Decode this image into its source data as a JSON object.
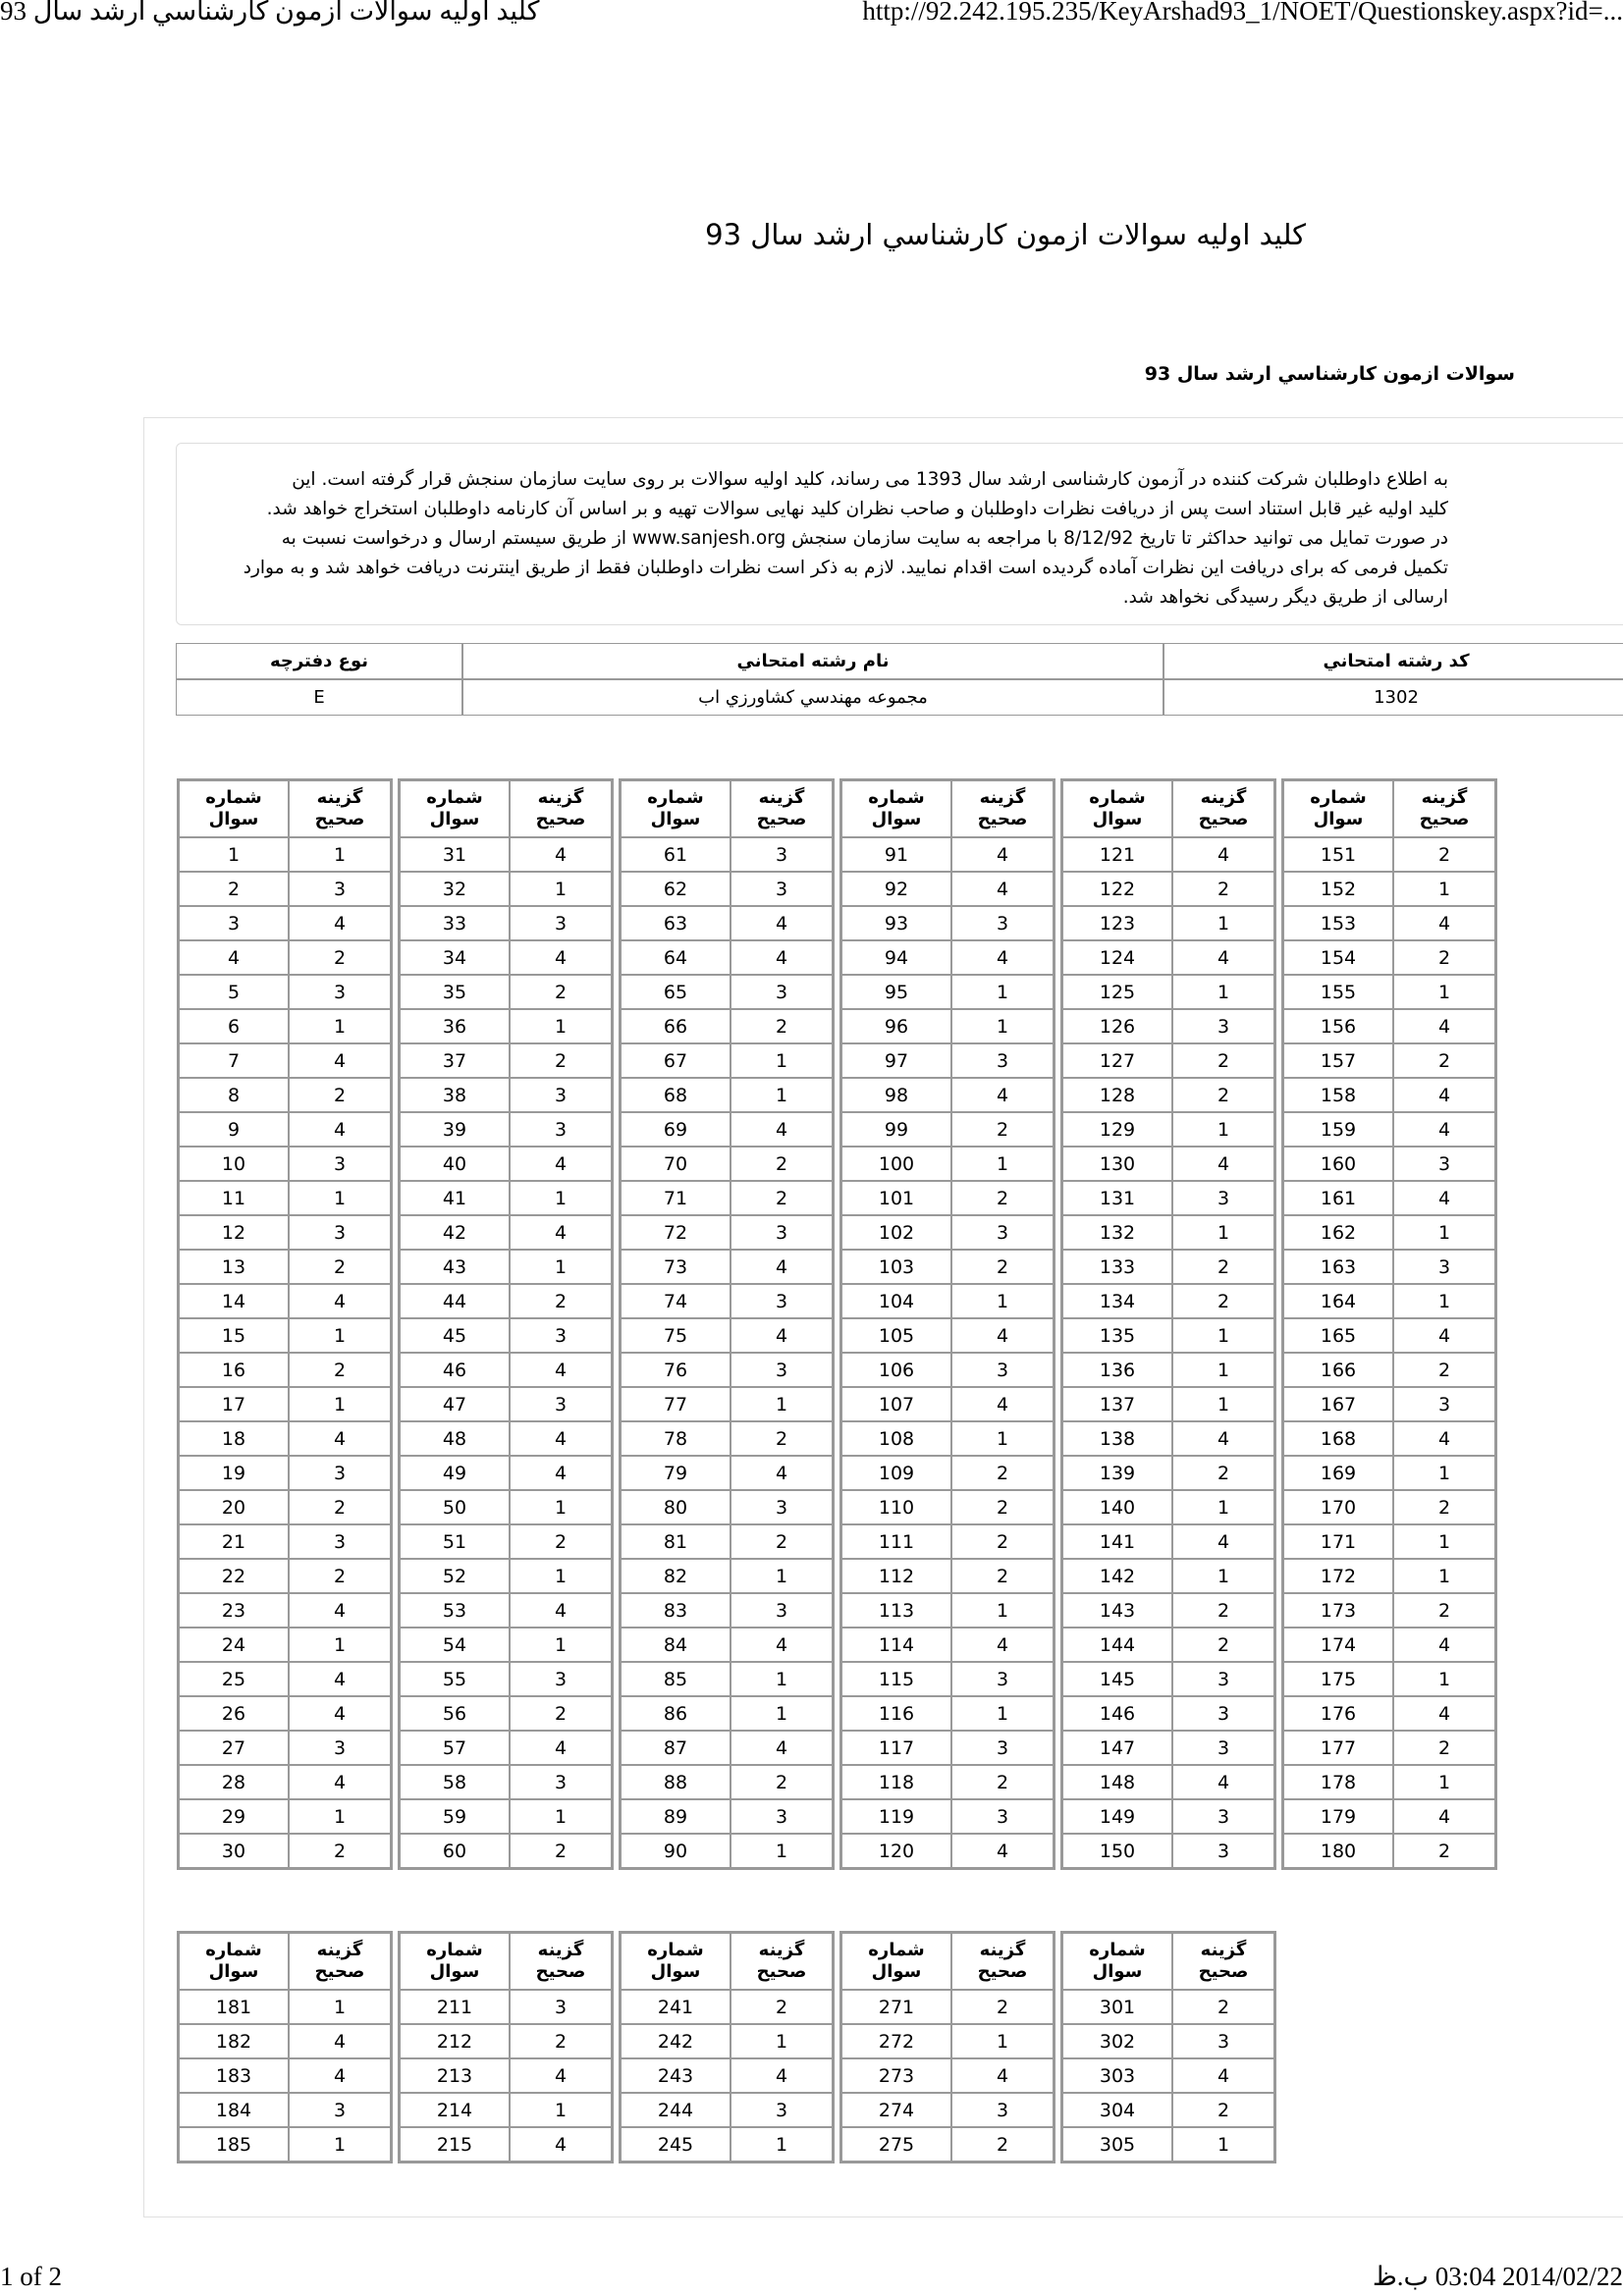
{
  "print_header": {
    "title": "كليد اوليه سوالات ازمون كارشناسي ارشد سال 93",
    "url": "http://92.242.195.235/KeyArshad93_1/NOET/Questionskey.aspx?id=..."
  },
  "print_footer": {
    "page": "1 of 2",
    "datetime": "2014/02/22 03:04 ب.ظ"
  },
  "page_title": "كليد اوليه سوالات ازمون كارشناسي ارشد سال 93",
  "subtitle": "سوالات ازمون كارشناسي ارشد سال 93",
  "notice": {
    "lines": [
      "به اطلاع داوطلبان شركت كننده در آزمون كارشناسی ارشد سال 1393 می رساند، كليد اوليه سوالات بر روی سايت سازمان سنجش قرار گرفته است. اين",
      "كليد اوليه غير قابل استناد است پس از دريافت نظرات داوطلبان و صاحب نظران كليد نهايی سوالات تهيه و بر اساس آن كارنامه داوطلبان استخراج خواهد شد.",
      "در صورت تمايل می توانيد حداكثر تا تاريخ 8/12/92 با مراجعه به سايت سازمان سنجش www.sanjesh.org از طريق  سيستم ارسال و درخواست نسبت به",
      "تكميل فرمی كه برای دريافت اين نظرات آماده گرديده است اقدام نماييد. لازم به ذكر است نظرات داوطلبان فقط از طريق اينترنت دريافت خواهد شد و به موارد",
      "ارسالی از طريق ديگر رسيدگی نخواهد شد."
    ]
  },
  "exam_info": {
    "headers": {
      "code": "كد رشته امتحاني",
      "name": "نام رشته امتحاني",
      "booklet": "نوع دفترچه"
    },
    "values": {
      "code": "1302",
      "name": "مجموعه مهندسي كشاورزي اب",
      "booklet": "E"
    }
  },
  "key_headers": {
    "question_1": "شماره",
    "question_2": "سوال",
    "answer_1": "گزينه",
    "answer_2": "صحيح"
  },
  "key_tables": [
    {
      "questions": [
        1,
        2,
        3,
        4,
        5,
        6,
        7,
        8,
        9,
        10,
        11,
        12,
        13,
        14,
        15,
        16,
        17,
        18,
        19,
        20,
        21,
        22,
        23,
        24,
        25,
        26,
        27,
        28,
        29,
        30
      ],
      "answers": [
        1,
        3,
        4,
        2,
        3,
        1,
        4,
        2,
        4,
        3,
        1,
        3,
        2,
        4,
        1,
        2,
        1,
        4,
        3,
        2,
        3,
        2,
        4,
        1,
        4,
        4,
        3,
        4,
        1,
        2
      ]
    },
    {
      "questions": [
        31,
        32,
        33,
        34,
        35,
        36,
        37,
        38,
        39,
        40,
        41,
        42,
        43,
        44,
        45,
        46,
        47,
        48,
        49,
        50,
        51,
        52,
        53,
        54,
        55,
        56,
        57,
        58,
        59,
        60
      ],
      "answers": [
        4,
        1,
        3,
        4,
        2,
        1,
        2,
        3,
        3,
        4,
        1,
        4,
        1,
        2,
        3,
        4,
        3,
        4,
        4,
        1,
        2,
        1,
        4,
        1,
        3,
        2,
        4,
        3,
        1,
        2
      ]
    },
    {
      "questions": [
        61,
        62,
        63,
        64,
        65,
        66,
        67,
        68,
        69,
        70,
        71,
        72,
        73,
        74,
        75,
        76,
        77,
        78,
        79,
        80,
        81,
        82,
        83,
        84,
        85,
        86,
        87,
        88,
        89,
        90
      ],
      "answers": [
        3,
        3,
        4,
        4,
        3,
        2,
        1,
        1,
        4,
        2,
        2,
        3,
        4,
        3,
        4,
        3,
        1,
        2,
        4,
        3,
        2,
        1,
        3,
        4,
        1,
        1,
        4,
        2,
        3,
        1
      ]
    },
    {
      "questions": [
        91,
        92,
        93,
        94,
        95,
        96,
        97,
        98,
        99,
        100,
        101,
        102,
        103,
        104,
        105,
        106,
        107,
        108,
        109,
        110,
        111,
        112,
        113,
        114,
        115,
        116,
        117,
        118,
        119,
        120
      ],
      "answers": [
        4,
        4,
        3,
        4,
        1,
        1,
        3,
        4,
        2,
        1,
        2,
        3,
        2,
        1,
        4,
        3,
        4,
        1,
        2,
        2,
        2,
        2,
        1,
        4,
        3,
        1,
        3,
        2,
        3,
        4
      ]
    },
    {
      "questions": [
        121,
        122,
        123,
        124,
        125,
        126,
        127,
        128,
        129,
        130,
        131,
        132,
        133,
        134,
        135,
        136,
        137,
        138,
        139,
        140,
        141,
        142,
        143,
        144,
        145,
        146,
        147,
        148,
        149,
        150
      ],
      "answers": [
        4,
        2,
        1,
        4,
        1,
        3,
        2,
        2,
        1,
        4,
        3,
        1,
        2,
        2,
        1,
        1,
        1,
        4,
        2,
        1,
        4,
        1,
        2,
        2,
        3,
        3,
        3,
        4,
        3,
        3
      ]
    },
    {
      "questions": [
        151,
        152,
        153,
        154,
        155,
        156,
        157,
        158,
        159,
        160,
        161,
        162,
        163,
        164,
        165,
        166,
        167,
        168,
        169,
        170,
        171,
        172,
        173,
        174,
        175,
        176,
        177,
        178,
        179,
        180
      ],
      "answers": [
        2,
        1,
        4,
        2,
        1,
        4,
        2,
        4,
        4,
        3,
        4,
        1,
        3,
        1,
        4,
        2,
        3,
        4,
        1,
        2,
        1,
        1,
        2,
        4,
        1,
        4,
        2,
        1,
        4,
        2
      ]
    },
    {
      "questions": [
        181,
        182,
        183,
        184,
        185
      ],
      "answers": [
        1,
        4,
        4,
        3,
        1
      ]
    },
    {
      "questions": [
        211,
        212,
        213,
        214,
        215
      ],
      "answers": [
        3,
        2,
        4,
        1,
        4
      ]
    },
    {
      "questions": [
        241,
        242,
        243,
        244,
        245
      ],
      "answers": [
        2,
        1,
        4,
        3,
        1
      ]
    },
    {
      "questions": [
        271,
        272,
        273,
        274,
        275
      ],
      "answers": [
        2,
        1,
        4,
        3,
        2
      ]
    },
    {
      "questions": [
        301,
        302,
        303,
        304,
        305
      ],
      "answers": [
        2,
        3,
        4,
        2,
        1
      ]
    }
  ]
}
